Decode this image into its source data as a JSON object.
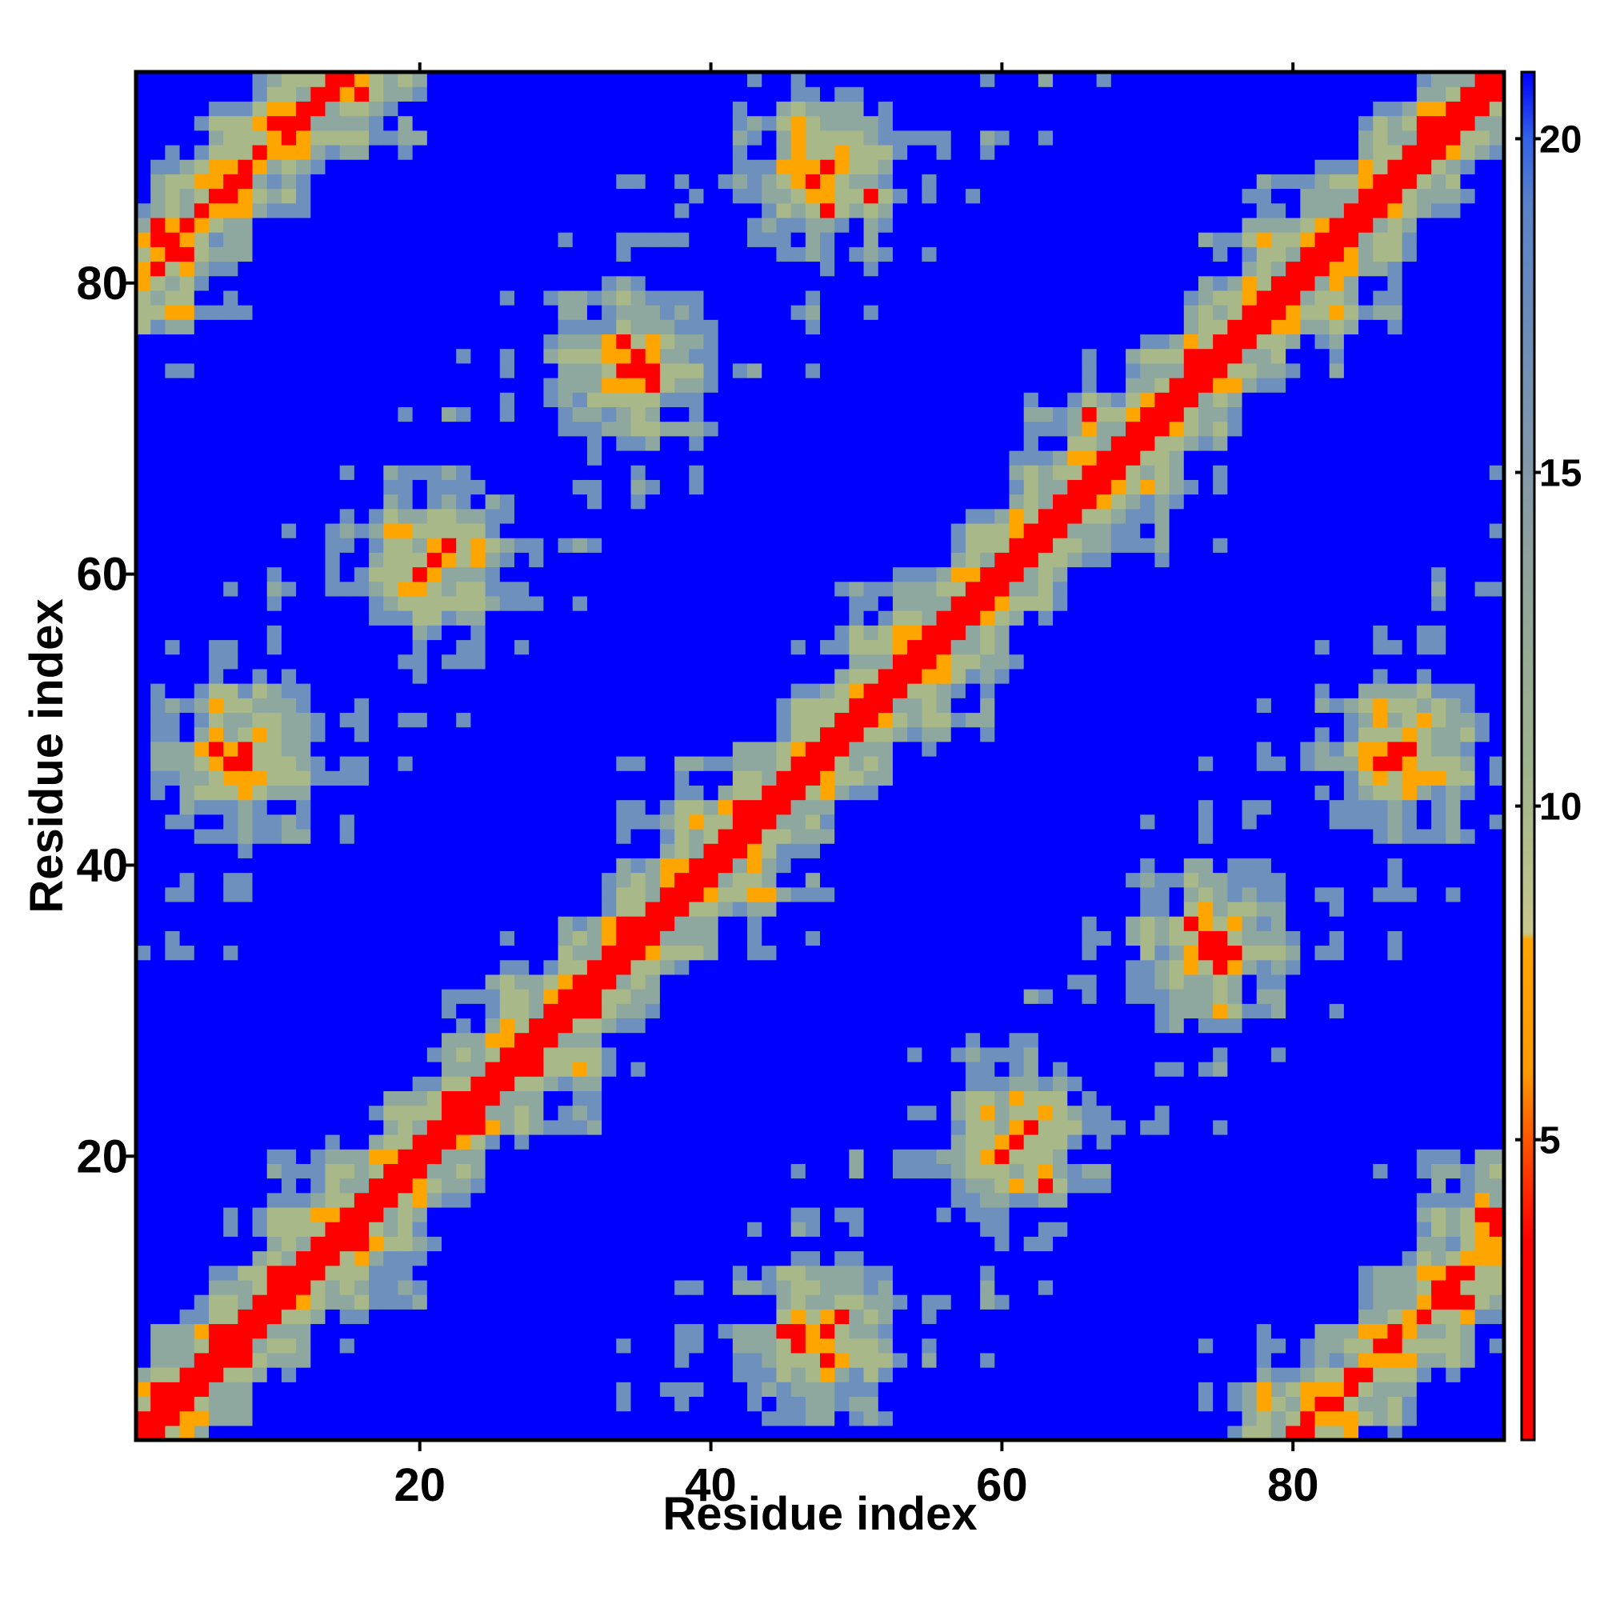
{
  "chart_data": {
    "type": "heatmap",
    "title": "",
    "xlabel": "Residue index",
    "ylabel": "Residue index",
    "n_residues": 94,
    "xlim": [
      0.5,
      94.5
    ],
    "ylim": [
      0.5,
      94.5
    ],
    "x_ticks": [
      20,
      40,
      60,
      80
    ],
    "y_ticks": [
      20,
      40,
      60,
      80
    ],
    "x_tick_labels": [
      "20",
      "40",
      "60",
      "80"
    ],
    "y_tick_labels": [
      "20",
      "40",
      "60",
      "80"
    ],
    "colorbar": {
      "placement": "right",
      "range": [
        0.5,
        21
      ],
      "ticks": [
        5,
        10,
        15,
        20
      ],
      "tick_labels": [
        "5",
        "10",
        "15",
        "20"
      ],
      "stops": [
        {
          "value": 0.5,
          "color": "#ff0000"
        },
        {
          "value": 3.5,
          "color": "#ff0000"
        },
        {
          "value": 5.0,
          "color": "#ff5500"
        },
        {
          "value": 6.0,
          "color": "#ff9900"
        },
        {
          "value": 8.0,
          "color": "#ffa500"
        },
        {
          "value": 8.1,
          "color": "#c8c88c"
        },
        {
          "value": 10.5,
          "color": "#a0b48c"
        },
        {
          "value": 14.0,
          "color": "#8ca0a0"
        },
        {
          "value": 19.0,
          "color": "#5a82c8"
        },
        {
          "value": 20.0,
          "color": "#3264e6"
        },
        {
          "value": 21.0,
          "color": "#0000ff"
        }
      ]
    },
    "colors": {
      "contact": "#ff0000",
      "near": "#ffa500",
      "mid_light": "#a8b888",
      "mid": "#8ea8a0",
      "far_steel": "#6e90bc",
      "far": "#0000ff"
    },
    "grid": false,
    "description_of_pattern": ""
  }
}
